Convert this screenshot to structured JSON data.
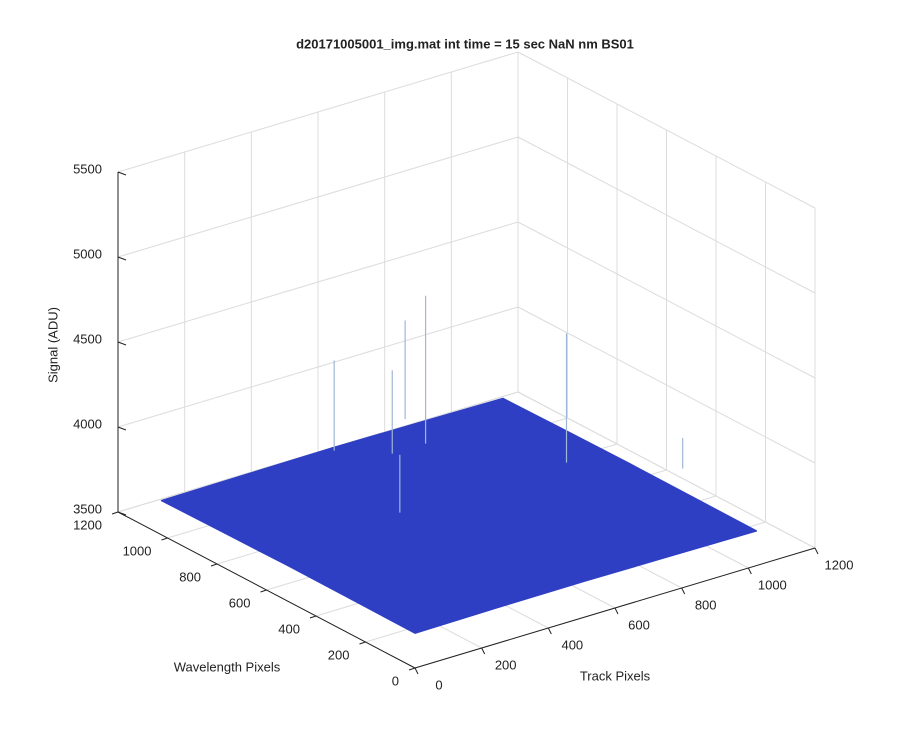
{
  "chart_data": {
    "type": "surface",
    "title": "d20171005001_img.mat int time = 15 sec  NaN nm BS01",
    "x_label": "Track Pixels",
    "y_label": "Wavelength Pixels",
    "z_label": "Signal (ADU)",
    "xlim": [
      0,
      1200
    ],
    "ylim": [
      0,
      1200
    ],
    "zlim": [
      3500,
      5500
    ],
    "xticks": [
      0,
      200,
      400,
      600,
      800,
      1000,
      1200
    ],
    "yticks": [
      0,
      200,
      400,
      600,
      800,
      1000,
      1200
    ],
    "zticks": [
      3500,
      4000,
      4500,
      5000,
      5500
    ],
    "grid": true,
    "color": "#2f3fc4",
    "spike_color": "#9fb7d6",
    "x": [
      0,
      256,
      512,
      768,
      1024
    ],
    "y": [
      0,
      256,
      512,
      768,
      1024
    ],
    "z": [
      [
        3705,
        3710,
        3712,
        3708,
        3704
      ],
      [
        3708,
        3714,
        3716,
        3712,
        3706
      ],
      [
        3710,
        3716,
        3720,
        3714,
        3708
      ],
      [
        3706,
        3712,
        3715,
        3710,
        3705
      ],
      [
        3702,
        3706,
        3710,
        3706,
        3700
      ]
    ],
    "spikes": {
      "x": [
        700,
        900,
        500,
        600,
        400,
        750,
        1100
      ],
      "y": [
        900,
        600,
        1000,
        900,
        600,
        1050,
        400
      ],
      "z": [
        4590,
        4480,
        4250,
        4210,
        4060,
        4300,
        3900
      ]
    }
  }
}
